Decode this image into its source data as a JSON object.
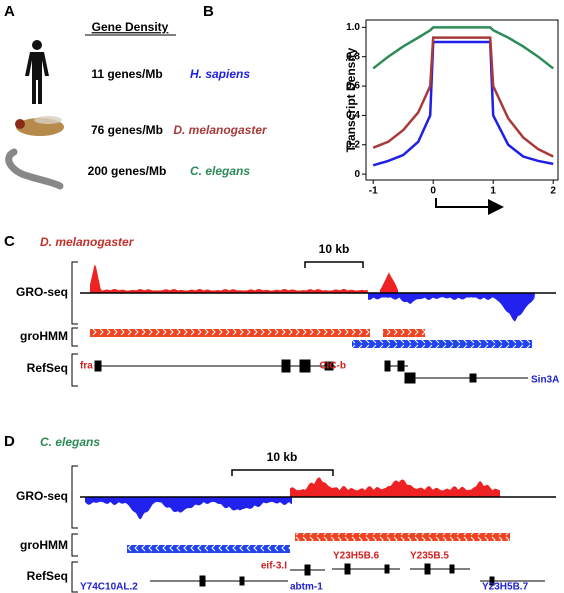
{
  "panel_a": {
    "letter": "A",
    "header": "Gene Density",
    "densities": [
      "11 genes/Mb",
      "76 genes/Mb",
      "200 genes/Mb"
    ]
  },
  "chart_data": {
    "type": "line",
    "letter": "B",
    "ylabel": "Transcript Density",
    "x": [
      -1,
      -0.75,
      -0.5,
      -0.25,
      -0.05,
      0,
      0.95,
      1,
      1.25,
      1.5,
      1.75,
      2
    ],
    "series": [
      {
        "name": "H. sapiens",
        "color": "#1f1fe6",
        "values": [
          0.06,
          0.09,
          0.13,
          0.22,
          0.4,
          0.9,
          0.9,
          0.4,
          0.2,
          0.12,
          0.09,
          0.07
        ]
      },
      {
        "name": "D. melanogaster",
        "color": "#a83a3a",
        "values": [
          0.18,
          0.22,
          0.3,
          0.42,
          0.6,
          0.93,
          0.93,
          0.6,
          0.38,
          0.25,
          0.17,
          0.12
        ]
      },
      {
        "name": "C. elegans",
        "color": "#2e8b57",
        "values": [
          0.72,
          0.8,
          0.87,
          0.93,
          0.98,
          1.0,
          1.0,
          0.98,
          0.93,
          0.87,
          0.8,
          0.72
        ]
      }
    ],
    "xlim": [
      -1.12,
      2.08
    ],
    "ylim": [
      -0.04,
      1.05
    ],
    "xticks": [
      -1,
      0,
      1,
      2
    ],
    "yticks": [
      0,
      0.2,
      0.4,
      0.6,
      0.8,
      {
        "value": 1,
        "label": "1.0"
      }
    ]
  },
  "panel_c": {
    "letter": "C",
    "organism": "D. melanogaster",
    "scale": "10 kb",
    "tracks": [
      "GRO-seq",
      "groHMM",
      "RefSeq"
    ],
    "genes": [
      "fra",
      "CIC-b",
      "Sin3A"
    ]
  },
  "panel_d": {
    "letter": "D",
    "organism": "C. elegans",
    "scale": "10 kb",
    "tracks": [
      "GRO-seq",
      "groHMM",
      "RefSeq"
    ],
    "genes": [
      "Y74C10AL.2",
      "abtm-1",
      "eif-3.I",
      "Y23H5B.6",
      "Y235B.5",
      "Y23H5B.7"
    ]
  }
}
